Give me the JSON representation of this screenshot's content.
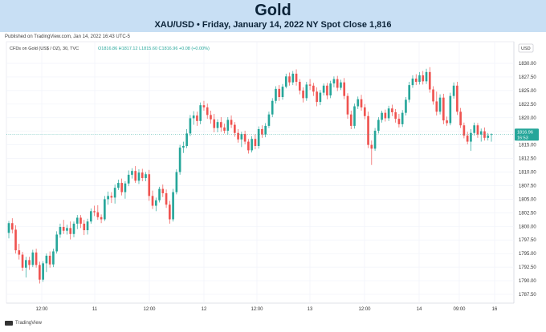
{
  "header": {
    "title": "Gold",
    "subtitle": "XAU/USD • Friday, January 14, 2022 NY Spot Close 1,816"
  },
  "published": "Published on TradingView.com, Jan 14, 2022 16:43 UTC-5",
  "footer": {
    "brand": "TradingView",
    "logo_icon": "tradingview-logo-icon"
  },
  "chart_data": {
    "type": "candlestick",
    "legend": {
      "symbol": "CFDs on Gold (US$ / OZ), 30, TVC",
      "ohlc": "O1816.86 H1817.12 L1815.60 C1816.96 +0.08 (+0.00%)"
    },
    "currency_label": "USD",
    "y_ticks": [
      "1830.00",
      "1827.50",
      "1825.00",
      "1822.50",
      "1820.00",
      "1817.50",
      "1815.00",
      "1812.50",
      "1810.00",
      "1807.50",
      "1805.00",
      "1802.50",
      "1800.00",
      "1797.50",
      "1795.00",
      "1792.50",
      "1790.00",
      "1787.50"
    ],
    "x_ticks": [
      "12:00",
      "11",
      "12:00",
      "12",
      "12:00",
      "13",
      "12:00",
      "14",
      "09:00",
      "16"
    ],
    "ylim": [
      1786.5,
      1831.5
    ],
    "last_price": "1816.96",
    "last_price_countdown": "16:53",
    "colors": {
      "up": "#26a69a",
      "down": "#ef5350",
      "price_line": "#26a69a",
      "grid": "#f0f3fa"
    },
    "candles": [
      [
        1798.8,
        1801.0,
        1797.8,
        1800.6
      ],
      [
        1800.6,
        1801.5,
        1798.7,
        1799.4
      ],
      [
        1799.4,
        1800.2,
        1795.0,
        1795.6
      ],
      [
        1795.6,
        1796.8,
        1793.9,
        1794.8
      ],
      [
        1794.8,
        1795.3,
        1791.8,
        1792.4
      ],
      [
        1792.4,
        1794.4,
        1790.6,
        1793.8
      ],
      [
        1793.8,
        1794.4,
        1792.0,
        1792.9
      ],
      [
        1792.9,
        1795.7,
        1792.5,
        1795.2
      ],
      [
        1795.2,
        1795.9,
        1792.4,
        1792.9
      ],
      [
        1792.9,
        1793.5,
        1789.5,
        1790.2
      ],
      [
        1790.2,
        1793.6,
        1789.8,
        1793.2
      ],
      [
        1793.2,
        1795.0,
        1791.6,
        1794.6
      ],
      [
        1794.6,
        1795.4,
        1792.4,
        1793.0
      ],
      [
        1793.0,
        1795.9,
        1792.5,
        1795.4
      ],
      [
        1795.4,
        1799.1,
        1795.0,
        1798.5
      ],
      [
        1798.5,
        1800.5,
        1797.9,
        1799.9
      ],
      [
        1799.9,
        1801.2,
        1798.6,
        1799.2
      ],
      [
        1799.2,
        1800.3,
        1798.5,
        1799.7
      ],
      [
        1799.7,
        1800.9,
        1797.6,
        1798.6
      ],
      [
        1798.6,
        1800.9,
        1798.0,
        1800.5
      ],
      [
        1800.5,
        1802.1,
        1799.5,
        1801.6
      ],
      [
        1801.6,
        1802.1,
        1799.7,
        1800.5
      ],
      [
        1800.5,
        1801.2,
        1798.4,
        1799.3
      ],
      [
        1799.3,
        1801.4,
        1798.5,
        1800.9
      ],
      [
        1800.9,
        1803.3,
        1800.5,
        1802.8
      ],
      [
        1802.8,
        1803.8,
        1801.9,
        1802.6
      ],
      [
        1802.6,
        1803.9,
        1801.2,
        1801.7
      ],
      [
        1801.7,
        1802.2,
        1800.6,
        1801.3
      ],
      [
        1801.3,
        1805.6,
        1801.0,
        1805.0
      ],
      [
        1805.0,
        1806.4,
        1804.0,
        1805.6
      ],
      [
        1805.6,
        1806.3,
        1804.3,
        1805.3
      ],
      [
        1805.3,
        1807.7,
        1804.2,
        1807.1
      ],
      [
        1807.1,
        1808.6,
        1806.7,
        1808.0
      ],
      [
        1808.0,
        1808.8,
        1805.7,
        1806.3
      ],
      [
        1806.3,
        1808.3,
        1805.1,
        1807.9
      ],
      [
        1807.9,
        1810.3,
        1807.4,
        1809.5
      ],
      [
        1809.5,
        1810.7,
        1808.8,
        1810.2
      ],
      [
        1810.2,
        1811.1,
        1808.0,
        1808.4
      ],
      [
        1808.4,
        1810.5,
        1807.8,
        1809.9
      ],
      [
        1809.9,
        1810.6,
        1808.3,
        1808.9
      ],
      [
        1808.9,
        1810.0,
        1808.3,
        1809.6
      ],
      [
        1809.6,
        1810.4,
        1804.7,
        1805.6
      ],
      [
        1805.6,
        1806.6,
        1803.2,
        1803.8
      ],
      [
        1803.8,
        1805.3,
        1802.8,
        1804.8
      ],
      [
        1804.8,
        1807.3,
        1804.4,
        1806.9
      ],
      [
        1806.9,
        1807.7,
        1805.4,
        1806.1
      ],
      [
        1806.1,
        1806.8,
        1803.4,
        1804.0
      ],
      [
        1804.0,
        1804.7,
        1800.5,
        1801.3
      ],
      [
        1801.3,
        1806.9,
        1800.9,
        1806.3
      ],
      [
        1806.3,
        1810.5,
        1805.9,
        1810.0
      ],
      [
        1810.0,
        1815.0,
        1809.5,
        1814.5
      ],
      [
        1814.5,
        1815.6,
        1813.5,
        1814.8
      ],
      [
        1814.8,
        1817.9,
        1814.4,
        1817.1
      ],
      [
        1817.1,
        1820.5,
        1816.6,
        1819.9
      ],
      [
        1819.9,
        1821.2,
        1818.7,
        1820.4
      ],
      [
        1820.4,
        1821.1,
        1818.5,
        1819.4
      ],
      [
        1819.4,
        1822.8,
        1818.8,
        1822.3
      ],
      [
        1822.3,
        1823.1,
        1821.3,
        1821.9
      ],
      [
        1821.9,
        1822.6,
        1819.8,
        1820.5
      ],
      [
        1820.5,
        1821.3,
        1818.9,
        1819.7
      ],
      [
        1819.7,
        1820.7,
        1817.3,
        1818.1
      ],
      [
        1818.1,
        1819.7,
        1817.3,
        1819.2
      ],
      [
        1819.2,
        1820.1,
        1817.4,
        1818.2
      ],
      [
        1818.2,
        1818.9,
        1817.1,
        1817.6
      ],
      [
        1817.6,
        1820.1,
        1816.9,
        1819.6
      ],
      [
        1819.6,
        1820.4,
        1818.1,
        1818.7
      ],
      [
        1818.7,
        1819.2,
        1816.5,
        1817.2
      ],
      [
        1817.2,
        1817.9,
        1815.4,
        1816.0
      ],
      [
        1816.0,
        1817.4,
        1814.6,
        1817.0
      ],
      [
        1817.0,
        1817.6,
        1815.1,
        1815.6
      ],
      [
        1815.6,
        1816.1,
        1813.4,
        1814.0
      ],
      [
        1814.0,
        1816.6,
        1813.6,
        1816.1
      ],
      [
        1816.1,
        1816.9,
        1814.2,
        1814.8
      ],
      [
        1814.8,
        1818.4,
        1814.3,
        1817.9
      ],
      [
        1817.9,
        1818.6,
        1816.3,
        1816.9
      ],
      [
        1816.9,
        1819.0,
        1816.4,
        1818.5
      ],
      [
        1818.5,
        1821.1,
        1818.1,
        1820.6
      ],
      [
        1820.6,
        1823.6,
        1820.1,
        1823.1
      ],
      [
        1823.1,
        1825.8,
        1822.6,
        1825.3
      ],
      [
        1825.3,
        1826.0,
        1823.1,
        1823.8
      ],
      [
        1823.8,
        1826.2,
        1823.3,
        1825.7
      ],
      [
        1825.7,
        1828.1,
        1825.4,
        1827.6
      ],
      [
        1827.6,
        1828.3,
        1825.9,
        1826.5
      ],
      [
        1826.5,
        1828.6,
        1826.0,
        1828.1
      ],
      [
        1828.1,
        1828.9,
        1825.9,
        1826.6
      ],
      [
        1826.6,
        1827.1,
        1824.3,
        1825.0
      ],
      [
        1825.0,
        1825.6,
        1822.8,
        1823.6
      ],
      [
        1823.6,
        1826.6,
        1823.1,
        1826.1
      ],
      [
        1826.1,
        1827.1,
        1825.1,
        1825.9
      ],
      [
        1825.9,
        1826.4,
        1824.0,
        1824.8
      ],
      [
        1824.8,
        1825.6,
        1822.1,
        1822.9
      ],
      [
        1822.9,
        1825.1,
        1822.3,
        1824.6
      ],
      [
        1824.6,
        1826.3,
        1824.1,
        1825.9
      ],
      [
        1825.9,
        1826.4,
        1823.4,
        1824.1
      ],
      [
        1824.1,
        1826.8,
        1823.6,
        1826.3
      ],
      [
        1826.3,
        1827.6,
        1825.6,
        1827.1
      ],
      [
        1827.1,
        1827.7,
        1824.9,
        1825.5
      ],
      [
        1825.5,
        1827.0,
        1825.1,
        1826.5
      ],
      [
        1826.5,
        1827.3,
        1823.4,
        1824.0
      ],
      [
        1824.0,
        1824.5,
        1819.8,
        1820.6
      ],
      [
        1820.6,
        1821.3,
        1817.9,
        1818.5
      ],
      [
        1818.5,
        1822.6,
        1818.0,
        1822.1
      ],
      [
        1822.1,
        1823.9,
        1821.6,
        1823.4
      ],
      [
        1823.4,
        1824.2,
        1821.3,
        1821.9
      ],
      [
        1821.9,
        1822.5,
        1819.7,
        1820.3
      ],
      [
        1820.3,
        1821.1,
        1814.4,
        1815.0
      ],
      [
        1815.0,
        1815.8,
        1811.3,
        1814.3
      ],
      [
        1814.3,
        1818.1,
        1813.9,
        1817.6
      ],
      [
        1817.6,
        1820.1,
        1817.1,
        1819.6
      ],
      [
        1819.6,
        1821.3,
        1819.1,
        1820.9
      ],
      [
        1820.9,
        1821.5,
        1819.3,
        1819.9
      ],
      [
        1819.9,
        1822.2,
        1819.4,
        1821.7
      ],
      [
        1821.7,
        1822.4,
        1820.3,
        1821.0
      ],
      [
        1821.0,
        1821.6,
        1819.1,
        1819.8
      ],
      [
        1819.8,
        1820.7,
        1818.2,
        1818.8
      ],
      [
        1818.8,
        1821.4,
        1818.3,
        1820.9
      ],
      [
        1820.9,
        1823.8,
        1820.4,
        1823.3
      ],
      [
        1823.3,
        1826.6,
        1822.8,
        1826.0
      ],
      [
        1826.0,
        1827.8,
        1825.5,
        1827.2
      ],
      [
        1827.2,
        1828.0,
        1826.0,
        1826.6
      ],
      [
        1826.6,
        1828.4,
        1826.1,
        1827.8
      ],
      [
        1827.8,
        1828.6,
        1826.1,
        1826.7
      ],
      [
        1826.7,
        1829.0,
        1826.2,
        1828.4
      ],
      [
        1828.4,
        1829.3,
        1824.6,
        1825.2
      ],
      [
        1825.2,
        1825.8,
        1822.4,
        1823.0
      ],
      [
        1823.0,
        1824.8,
        1820.4,
        1821.1
      ],
      [
        1821.1,
        1824.3,
        1820.6,
        1823.7
      ],
      [
        1823.7,
        1824.4,
        1818.8,
        1819.5
      ],
      [
        1819.5,
        1820.2,
        1818.5,
        1819.0
      ],
      [
        1819.0,
        1824.6,
        1818.6,
        1824.0
      ],
      [
        1824.0,
        1826.5,
        1823.5,
        1825.9
      ],
      [
        1825.9,
        1826.6,
        1820.5,
        1821.1
      ],
      [
        1821.1,
        1821.8,
        1818.1,
        1818.6
      ],
      [
        1818.6,
        1819.1,
        1816.2,
        1816.7
      ],
      [
        1816.7,
        1817.4,
        1815.1,
        1815.6
      ],
      [
        1815.6,
        1817.9,
        1813.9,
        1817.2
      ],
      [
        1817.2,
        1819.1,
        1816.7,
        1818.6
      ],
      [
        1818.6,
        1819.0,
        1816.3,
        1816.9
      ],
      [
        1816.9,
        1818.0,
        1815.6,
        1817.5
      ],
      [
        1817.5,
        1818.2,
        1815.8,
        1816.3
      ],
      [
        1816.3,
        1817.2,
        1815.8,
        1816.7
      ],
      [
        1816.86,
        1817.12,
        1815.6,
        1816.96
      ]
    ]
  }
}
